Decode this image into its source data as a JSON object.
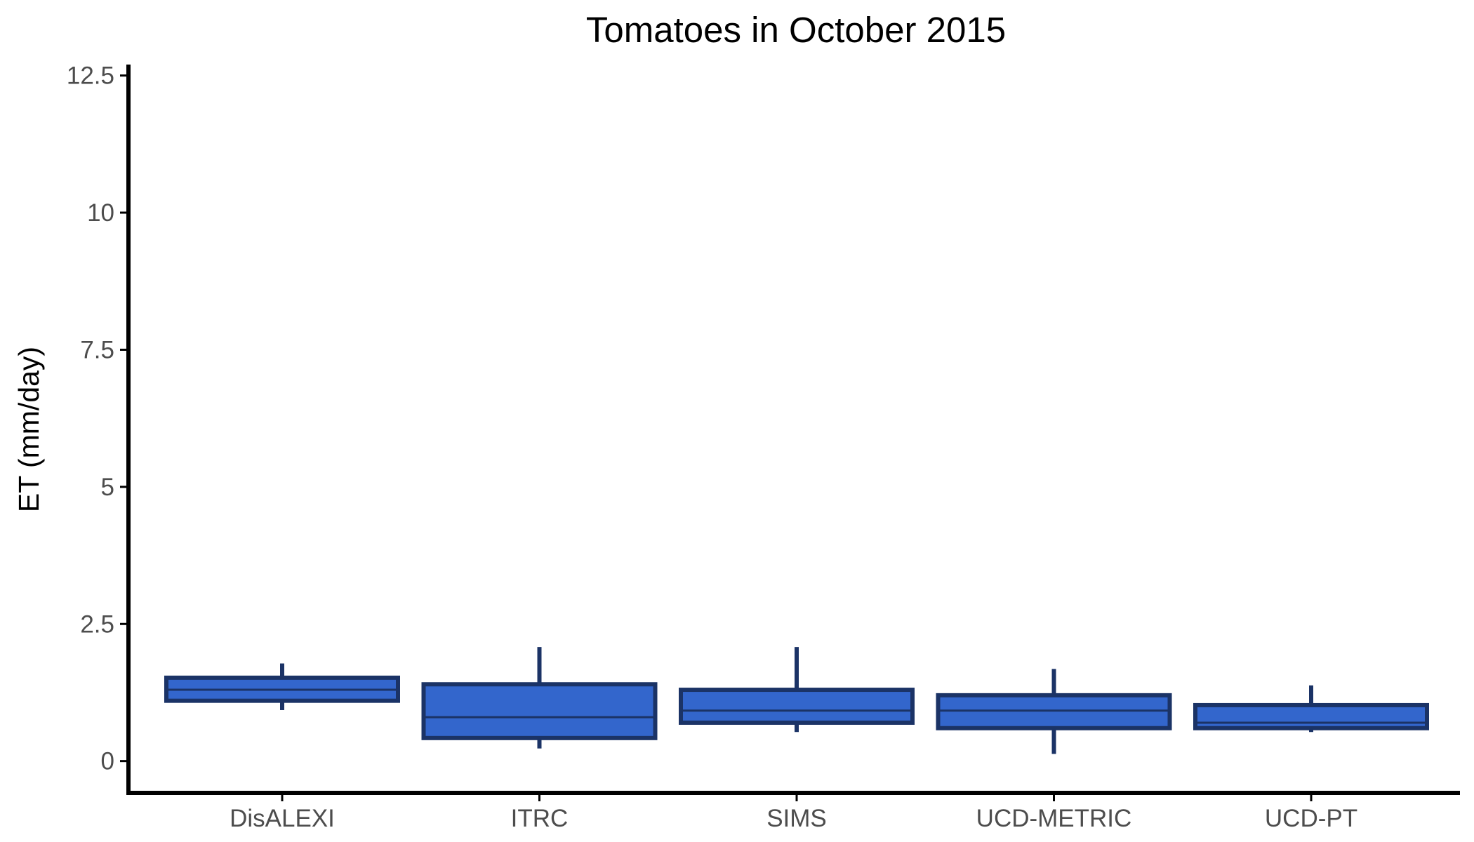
{
  "chart_data": {
    "type": "boxplot",
    "title": "Tomatoes in October 2015",
    "xlabel": "",
    "ylabel": "ET (mm/day)",
    "ylim": [
      -0.58,
      12.7
    ],
    "yticks": [
      0,
      2.5,
      5,
      7.5,
      10,
      12.5
    ],
    "ytick_labels": [
      "0",
      "2.5",
      "5",
      "7.5",
      "10",
      "12.5"
    ],
    "categories": [
      "DisALEXI",
      "ITRC",
      "SIMS",
      "UCD-METRIC",
      "UCD-PT"
    ],
    "boxes": [
      {
        "category": "DisALEXI",
        "whisker_low": 0.93,
        "q1": 1.1,
        "median": 1.3,
        "q3": 1.52,
        "whisker_high": 1.78
      },
      {
        "category": "ITRC",
        "whisker_low": 0.23,
        "q1": 0.42,
        "median": 0.8,
        "q3": 1.4,
        "whisker_high": 2.08
      },
      {
        "category": "SIMS",
        "whisker_low": 0.53,
        "q1": 0.7,
        "median": 0.92,
        "q3": 1.3,
        "whisker_high": 2.08
      },
      {
        "category": "UCD-METRIC",
        "whisker_low": 0.13,
        "q1": 0.6,
        "median": 0.92,
        "q3": 1.2,
        "whisker_high": 1.68
      },
      {
        "category": "UCD-PT",
        "whisker_low": 0.53,
        "q1": 0.6,
        "median": 0.7,
        "q3": 1.02,
        "whisker_high": 1.38
      }
    ],
    "colors": {
      "box_fill": "#3366CC",
      "box_line": "#1B3366",
      "axis": "#000000"
    },
    "grid": false,
    "legend": "none"
  }
}
